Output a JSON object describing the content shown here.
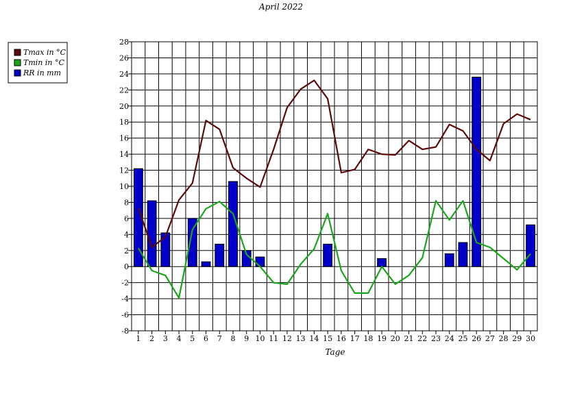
{
  "chart_data": {
    "type": "bar+line",
    "title": "April 2022",
    "xlabel": "Tage",
    "ylabel": "",
    "ylim": [
      -8,
      28
    ],
    "yticks": [
      -8,
      -6,
      -4,
      -2,
      0,
      2,
      4,
      6,
      8,
      10,
      12,
      14,
      16,
      18,
      20,
      22,
      24,
      26,
      28
    ],
    "x": [
      1,
      2,
      3,
      4,
      5,
      6,
      7,
      8,
      9,
      10,
      11,
      12,
      13,
      14,
      15,
      16,
      17,
      18,
      19,
      20,
      21,
      22,
      23,
      24,
      25,
      26,
      27,
      28,
      29,
      30
    ],
    "grid": true,
    "legend_position": "top-left outside",
    "series": [
      {
        "name": "Tmax in °C",
        "kind": "line",
        "color": "#5a0a0a",
        "values": [
          7.3,
          2.4,
          3.7,
          8.3,
          10.4,
          18.2,
          17.1,
          12.3,
          11.0,
          9.9,
          14.6,
          19.8,
          22.1,
          23.2,
          20.9,
          11.7,
          12.1,
          14.6,
          14.0,
          13.9,
          15.7,
          14.6,
          14.9,
          17.7,
          16.9,
          14.6,
          13.2,
          17.8,
          19.0,
          18.3
        ]
      },
      {
        "name": "Tmin in °C",
        "kind": "line",
        "color": "#1aa51a",
        "values": [
          2.3,
          -0.5,
          -1.1,
          -3.9,
          4.6,
          7.2,
          8.1,
          6.6,
          1.5,
          0.0,
          -2.0,
          -2.2,
          0.3,
          2.2,
          6.6,
          -0.5,
          -3.3,
          -3.3,
          0.0,
          -2.2,
          -1.1,
          1.1,
          8.2,
          5.8,
          8.2,
          3.0,
          2.4,
          1.0,
          -0.4,
          1.6
        ]
      },
      {
        "name": "RR in mm",
        "kind": "bar",
        "color": "#0000c8",
        "values": [
          12.2,
          8.2,
          4.2,
          0,
          6.0,
          0.6,
          2.8,
          10.6,
          2.0,
          1.2,
          0,
          0,
          0,
          0,
          2.8,
          0,
          0,
          0,
          1.0,
          0,
          0,
          0,
          0,
          1.6,
          3.0,
          23.6,
          0,
          0,
          0,
          5.2
        ]
      }
    ]
  }
}
